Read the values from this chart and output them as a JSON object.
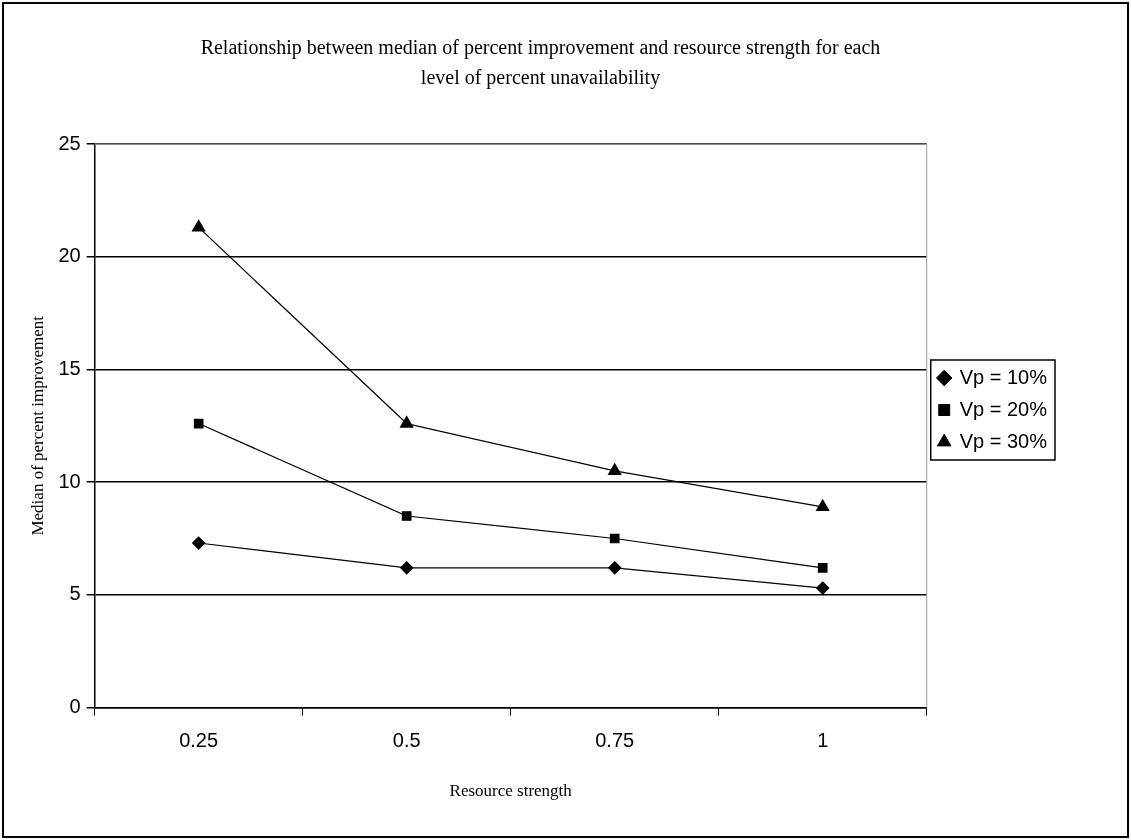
{
  "chart_data": {
    "type": "line",
    "title": "Relationship between median of percent improvement and resource strength for each level of percent unavailability",
    "xlabel": "Resource strength",
    "ylabel": "Median of percent improvement",
    "categories": [
      "0.25",
      "0.5",
      "0.75",
      "1"
    ],
    "series": [
      {
        "name": "Vp = 10%",
        "color": "#000000",
        "marker": "diamond",
        "values": [
          7.3,
          6.2,
          6.2,
          5.3
        ]
      },
      {
        "name": "Vp = 20%",
        "color": "#000000",
        "marker": "square",
        "values": [
          12.6,
          8.5,
          7.5,
          6.2
        ]
      },
      {
        "name": "Vp = 30%",
        "color": "#000000",
        "marker": "triangle",
        "values": [
          21.3,
          12.6,
          10.5,
          8.9
        ]
      }
    ],
    "ylim": [
      0,
      25
    ],
    "yticks": [
      0,
      5,
      10,
      15,
      20,
      25
    ],
    "grid": "y",
    "legend": "right",
    "line_style": "solid"
  }
}
